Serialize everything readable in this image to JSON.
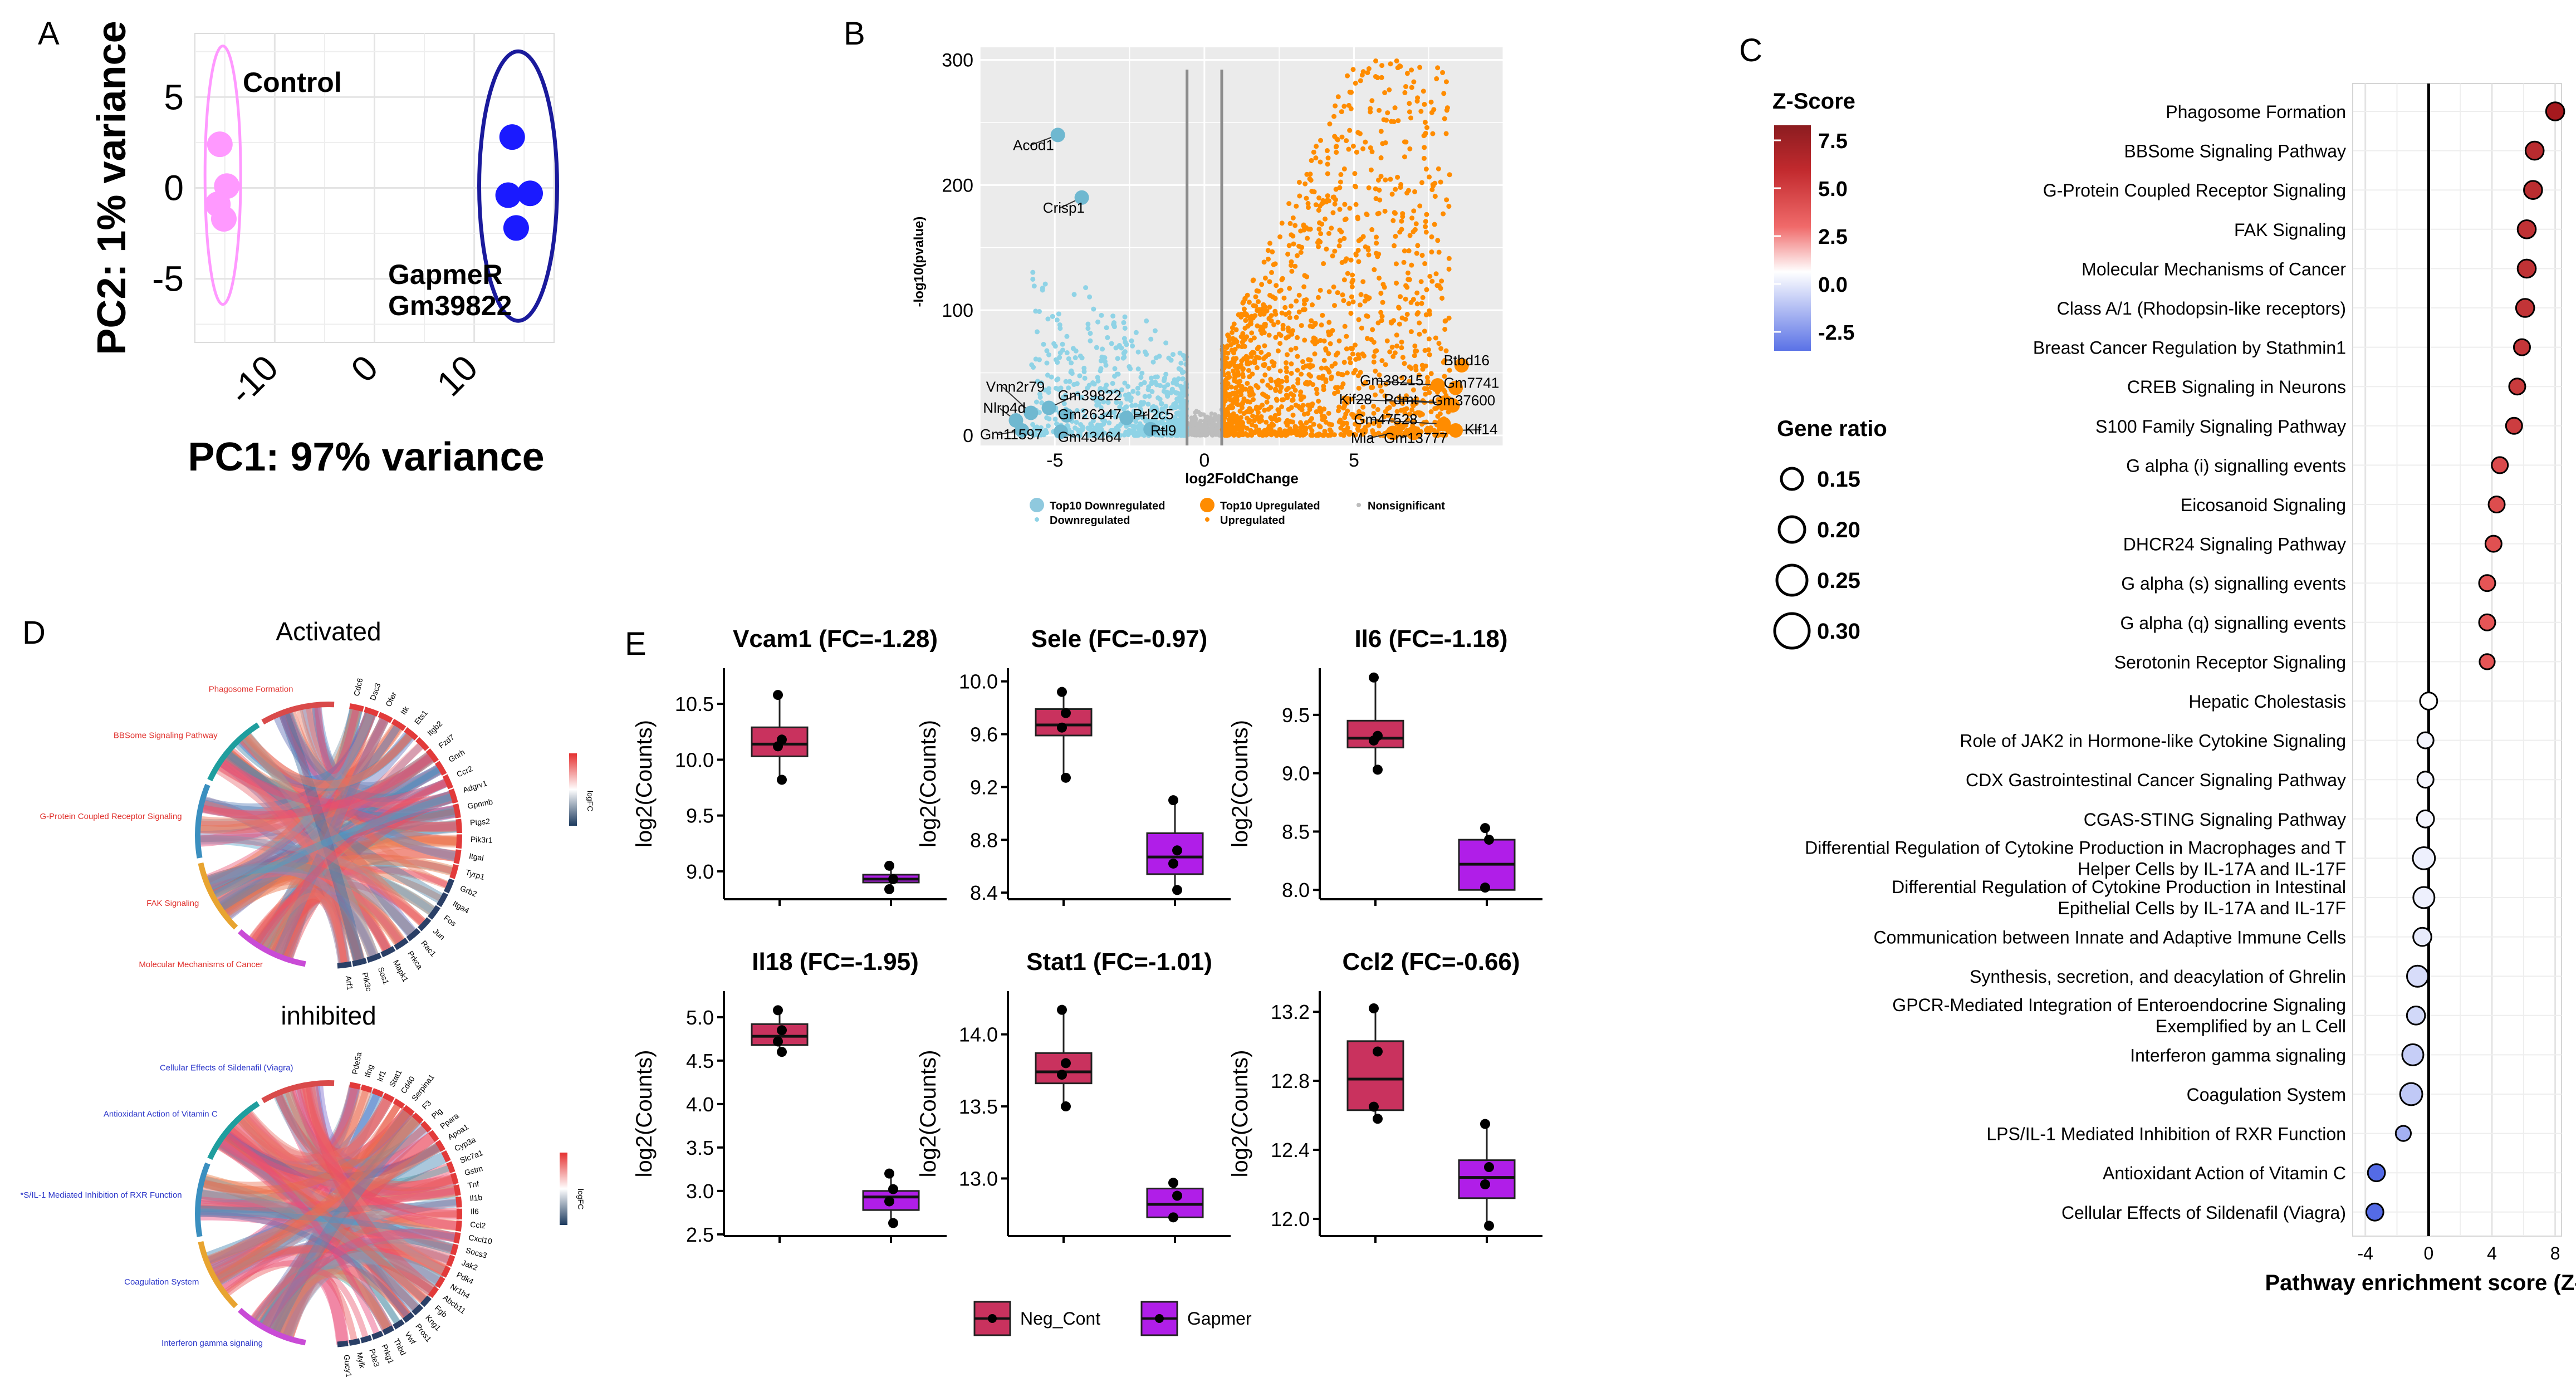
{
  "panels": {
    "a": "A",
    "b": "B",
    "c": "C",
    "d": "D",
    "e": "E"
  },
  "chart_data": [
    {
      "id": "A",
      "type": "scatter",
      "title": "",
      "xlabel": "PC1: 97% variance",
      "ylabel": "PC2: 1% variance",
      "xlim": [
        -18,
        18
      ],
      "ylim": [
        -8.5,
        8.5
      ],
      "xticks": [
        -10,
        0,
        10
      ],
      "yticks": [
        5,
        0,
        -5
      ],
      "xtick_labels": [
        "-10",
        "0",
        "10"
      ],
      "ytick_labels": [
        "5",
        "0",
        "-5"
      ],
      "groups": [
        {
          "name": "Control",
          "color": "#ff99ff",
          "label": "Control",
          "points": [
            [
              -15.5,
              2.4
            ],
            [
              -14.8,
              0.1
            ],
            [
              -15.7,
              -0.9
            ],
            [
              -15.1,
              -1.7
            ]
          ]
        },
        {
          "name": "GapmeR Gm39822",
          "color": "#1a1aff",
          "label_line1": "GapmeR",
          "label_line2": "Gm39822",
          "points": [
            [
              13.8,
              2.8
            ],
            [
              13.4,
              -0.4
            ],
            [
              15.6,
              -0.3
            ],
            [
              14.2,
              -2.2
            ]
          ]
        }
      ]
    },
    {
      "id": "B",
      "type": "scatter",
      "title": "",
      "xlabel": "log2FoldChange",
      "ylabel": "-log10(pvalue)",
      "xlim": [
        -7.5,
        10
      ],
      "ylim": [
        -8,
        310
      ],
      "xticks": [
        -5,
        0,
        5
      ],
      "yticks": [
        0,
        100,
        200,
        300
      ],
      "xtick_labels": [
        "-5",
        "0",
        "5"
      ],
      "ytick_labels": [
        "0",
        "100",
        "200",
        "300"
      ],
      "thresholds_x": [
        -0.58,
        0.58
      ],
      "downregulated_color": "#8fd3e6",
      "upregulated_color": "#ff8c00",
      "nonsig_color": "#bdbdbd",
      "top_labels": [
        {
          "text": "Acod1",
          "x": -4.9,
          "y": 240,
          "tx": -6.4,
          "ty": 228,
          "group": "down"
        },
        {
          "text": "Crisp1",
          "x": -4.1,
          "y": 190,
          "tx": -5.4,
          "ty": 178,
          "group": "down"
        },
        {
          "text": "Vmn2r79",
          "x": -5.8,
          "y": 18,
          "tx": -7.3,
          "ty": 35,
          "group": "down"
        },
        {
          "text": "Nlrp4d",
          "x": -6.3,
          "y": 12,
          "tx": -7.4,
          "ty": 18,
          "group": "down"
        },
        {
          "text": "Gm39822",
          "x": -5.2,
          "y": 22,
          "tx": -4.9,
          "ty": 28,
          "group": "down"
        },
        {
          "text": "Gm26347",
          "x": -4.6,
          "y": 16,
          "tx": -4.9,
          "ty": 13,
          "group": "down"
        },
        {
          "text": "Prl2c5",
          "x": -2.6,
          "y": 14,
          "tx": -2.4,
          "ty": 13,
          "group": "down"
        },
        {
          "text": "Gm11597",
          "x": -6.1,
          "y": 4,
          "tx": -7.5,
          "ty": -3,
          "group": "down"
        },
        {
          "text": "Gm43464",
          "x": -4.8,
          "y": 3,
          "tx": -4.9,
          "ty": -5,
          "group": "down"
        },
        {
          "text": "Rtl9",
          "x": -1.8,
          "y": 5,
          "tx": -1.8,
          "ty": 0,
          "group": "down"
        },
        {
          "text": "Btbd16",
          "x": 8.6,
          "y": 56,
          "tx": 8.0,
          "ty": 56,
          "group": "up"
        },
        {
          "text": "Gm38215",
          "x": 7.8,
          "y": 40,
          "tx": 5.2,
          "ty": 40,
          "group": "up"
        },
        {
          "text": "Gm7741",
          "x": 8.4,
          "y": 38,
          "tx": 8.0,
          "ty": 38,
          "group": "up"
        },
        {
          "text": "Kif28",
          "x": 8.1,
          "y": 26,
          "tx": 4.5,
          "ty": 25,
          "group": "up"
        },
        {
          "text": "Pdmt",
          "x": 8.0,
          "y": 26,
          "tx": 6.0,
          "ty": 25,
          "group": "up"
        },
        {
          "text": "Gm37600",
          "x": 8.3,
          "y": 24,
          "tx": 7.6,
          "ty": 24,
          "group": "up"
        },
        {
          "text": "Gm47528",
          "x": 8.0,
          "y": 9,
          "tx": 5.0,
          "ty": 9,
          "group": "up"
        },
        {
          "text": "Klf14",
          "x": 8.4,
          "y": 4,
          "tx": 8.7,
          "ty": 1,
          "group": "up"
        },
        {
          "text": "Mia",
          "x": 6.3,
          "y": 2,
          "tx": 4.9,
          "ty": -6,
          "group": "up"
        },
        {
          "text": "Gm13777",
          "x": 7.0,
          "y": 2,
          "tx": 6.0,
          "ty": -6,
          "group": "up"
        }
      ],
      "legend": {
        "top10_down": "Top10 Downregulated",
        "top10_up": "Top10 Upregulated",
        "nonsig": "Nonsignificant",
        "down": "Downregulated",
        "up": "Upregulated"
      }
    },
    {
      "id": "C",
      "type": "scatter",
      "title": "",
      "xlabel": "Pathway enrichment score (Z-score)",
      "ylabel": "",
      "xlim": [
        -4.8,
        8.4
      ],
      "xticks": [
        -4,
        0,
        4,
        8
      ],
      "xtick_labels": [
        "-4",
        "0",
        "4",
        "8"
      ],
      "legend_zscore_title": "Z-Score",
      "legend_zscore_ticks": [
        "7.5",
        "5.0",
        "2.5",
        "0.0",
        "-2.5"
      ],
      "legend_ratio_title": "Gene ratio",
      "legend_ratio_values": [
        "0.15",
        "0.20",
        "0.25",
        "0.30"
      ],
      "pathways": [
        {
          "name": "Phagosome Formation",
          "z": 8.0,
          "ratio": 0.22
        },
        {
          "name": "BBSome Signaling Pathway",
          "z": 6.7,
          "ratio": 0.22
        },
        {
          "name": "G-Protein Coupled Receptor Signaling",
          "z": 6.6,
          "ratio": 0.22
        },
        {
          "name": "FAK Signaling",
          "z": 6.2,
          "ratio": 0.22
        },
        {
          "name": "Molecular Mechanisms of Cancer",
          "z": 6.2,
          "ratio": 0.22
        },
        {
          "name": "Class A/1 (Rhodopsin-like receptors)",
          "z": 6.1,
          "ratio": 0.22
        },
        {
          "name": "Breast Cancer Regulation by Stathmin1",
          "z": 5.9,
          "ratio": 0.2
        },
        {
          "name": "CREB Signaling in Neurons",
          "z": 5.6,
          "ratio": 0.2
        },
        {
          "name": "S100 Family Signaling Pathway",
          "z": 5.4,
          "ratio": 0.2
        },
        {
          "name": "G alpha (i) signalling events",
          "z": 4.5,
          "ratio": 0.2
        },
        {
          "name": "Eicosanoid Signaling",
          "z": 4.3,
          "ratio": 0.2
        },
        {
          "name": "DHCR24 Signaling Pathway",
          "z": 4.1,
          "ratio": 0.2
        },
        {
          "name": "G alpha (s) signalling events",
          "z": 3.7,
          "ratio": 0.2
        },
        {
          "name": "G alpha (q) signalling events",
          "z": 3.7,
          "ratio": 0.2
        },
        {
          "name": "Serotonin Receptor Signaling",
          "z": 3.7,
          "ratio": 0.19
        },
        {
          "name": "Hepatic Cholestasis",
          "z": 0.0,
          "ratio": 0.21
        },
        {
          "name": "Role of JAK2 in Hormone-like Cytokine Signaling",
          "z": -0.2,
          "ratio": 0.2
        },
        {
          "name": "CDX Gastrointestinal Cancer Signaling Pathway",
          "z": -0.2,
          "ratio": 0.2
        },
        {
          "name": "CGAS-STING Signaling Pathway",
          "z": -0.2,
          "ratio": 0.21
        },
        {
          "name": "Differential Regulation of Cytokine Production in Macrophages and T Helper Cells by IL-17A and IL-17F",
          "z": -0.3,
          "ratio": 0.26
        },
        {
          "name": "Differential Regulation of Cytokine Production in Intestinal Epithelial Cells by IL-17A and IL-17F",
          "z": -0.3,
          "ratio": 0.25
        },
        {
          "name": "Communication between Innate and Adaptive Immune Cells",
          "z": -0.4,
          "ratio": 0.22
        },
        {
          "name": "Synthesis, secretion, and deacylation of Ghrelin",
          "z": -0.7,
          "ratio": 0.25
        },
        {
          "name": "GPCR-Mediated Integration of Enteroendocrine Signaling Exemplified by an L Cell",
          "z": -0.8,
          "ratio": 0.22
        },
        {
          "name": "Interferon gamma signaling",
          "z": -1.0,
          "ratio": 0.25
        },
        {
          "name": "Coagulation System",
          "z": -1.1,
          "ratio": 0.26
        },
        {
          "name": "LPS/IL-1 Mediated Inhibition of RXR Function",
          "z": -1.6,
          "ratio": 0.19
        },
        {
          "name": "Antioxidant Action of Vitamin C",
          "z": -3.3,
          "ratio": 0.21
        },
        {
          "name": "Cellular Effects of Sildenafil (Viagra)",
          "z": -3.4,
          "ratio": 0.21
        }
      ]
    },
    {
      "id": "D",
      "type": "other",
      "title_activated": "Activated",
      "title_inhibited": "inhibited",
      "activated_pathways": [
        "Molecular Mechanisms of Cancer",
        "FAK Signaling",
        "G-Protein Coupled Receptor Signaling",
        "BBSome Signaling Pathway",
        "Phagosome Formation"
      ],
      "inhibited_pathways": [
        "Interferon gamma signaling",
        "Coagulation System",
        "*S/IL-1 Mediated Inhibition of RXR Function",
        "Antioxidant Action of Vitamin C",
        "Cellular Effects of Sildenafil (Viagra)"
      ],
      "activated_genes": [
        "Cdc6",
        "Dsc3",
        "Ofer",
        "Itk",
        "Ets1",
        "Itgb2",
        "Fzd7",
        "Gnrh",
        "Ccr2",
        "Adgrv1",
        "Gpnmb",
        "Ptgs2",
        "Pik3r1",
        "Itgal",
        "Tyrp1",
        "Grb2",
        "Itga4",
        "Fos",
        "Jun",
        "Rac1",
        "Prkca",
        "Mapk1",
        "Sos1",
        "Pik3c",
        "Arf1"
      ],
      "inhibited_genes": [
        "Pde5a",
        "Ifng",
        "Irf1",
        "Stat1",
        "Cd40",
        "Serpina1",
        "F3",
        "Plg",
        "Ppara",
        "Apoa1",
        "Cyp3a",
        "Slc7a1",
        "Gstm",
        "Tnf",
        "Il1b",
        "Il6",
        "Ccl2",
        "Cxcl10",
        "Socs3",
        "Jak2",
        "Pdk4",
        "Nr1h4",
        "Abcb11",
        "Fgb",
        "Kng1",
        "Pros1",
        "Vwf",
        "Thbd",
        "Prkg1",
        "Pde3",
        "Mylk",
        "Gucy1"
      ],
      "colorbar_label": "logFC"
    },
    {
      "id": "E",
      "type": "box",
      "ylabel": "log2(Counts)",
      "legend": [
        "Neg_Cont",
        "Gapmer"
      ],
      "colors": [
        "#c9325e",
        "#b01ee8"
      ],
      "genes": [
        {
          "title": "Vcam1 (FC=-1.28)",
          "ylim": [
            8.75,
            10.82
          ],
          "yticks": [
            9.0,
            9.5,
            10.0,
            10.5
          ],
          "ytick_labels": [
            "9.0",
            "9.5",
            "10.0",
            "10.5"
          ],
          "neg": {
            "q1": 10.03,
            "med": 10.14,
            "q3": 10.29,
            "lo": 9.82,
            "hi": 10.58,
            "pts": [
              10.58,
              10.18,
              10.12,
              9.82
            ]
          },
          "gap": {
            "q1": 8.9,
            "med": 8.93,
            "q3": 8.97,
            "lo": 8.84,
            "hi": 9.05,
            "pts": [
              9.05,
              8.93,
              8.84
            ]
          }
        },
        {
          "title": "Sele (FC=-0.97)",
          "ylim": [
            8.35,
            10.1
          ],
          "yticks": [
            8.4,
            8.8,
            9.2,
            9.6,
            10.0
          ],
          "ytick_labels": [
            "8.4",
            "8.8",
            "9.2",
            "9.6",
            "10.0"
          ],
          "neg": {
            "q1": 9.59,
            "med": 9.67,
            "q3": 9.79,
            "lo": 9.27,
            "hi": 9.92,
            "pts": [
              9.92,
              9.76,
              9.65,
              9.27
            ]
          },
          "gap": {
            "q1": 8.54,
            "med": 8.67,
            "q3": 8.85,
            "lo": 8.42,
            "hi": 9.1,
            "pts": [
              9.1,
              8.72,
              8.62,
              8.42
            ]
          }
        },
        {
          "title": "Il6 (FC=-1.18)",
          "ylim": [
            7.92,
            9.9
          ],
          "yticks": [
            8.0,
            8.5,
            9.0,
            9.5
          ],
          "ytick_labels": [
            "8.0",
            "8.5",
            "9.0",
            "9.5"
          ],
          "neg": {
            "q1": 9.22,
            "med": 9.3,
            "q3": 9.45,
            "lo": 9.03,
            "hi": 9.82,
            "pts": [
              9.82,
              9.32,
              9.28,
              9.03
            ]
          },
          "gap": {
            "q1": 8.0,
            "med": 8.22,
            "q3": 8.43,
            "lo": 8.0,
            "hi": 8.53,
            "pts": [
              8.53,
              8.43,
              8.02
            ]
          }
        },
        {
          "title": "Il18 (FC=-1.95)",
          "ylim": [
            2.48,
            5.3
          ],
          "yticks": [
            2.5,
            3.0,
            3.5,
            4.0,
            4.5,
            5.0
          ],
          "ytick_labels": [
            "2.5",
            "3.0",
            "3.5",
            "4.0",
            "4.5",
            "5.0"
          ],
          "neg": {
            "q1": 4.68,
            "med": 4.78,
            "q3": 4.92,
            "lo": 4.6,
            "hi": 5.08,
            "pts": [
              5.08,
              4.85,
              4.72,
              4.6
            ]
          },
          "gap": {
            "q1": 2.78,
            "med": 2.93,
            "q3": 3.0,
            "lo": 2.63,
            "hi": 3.2,
            "pts": [
              3.2,
              3.02,
              2.88,
              2.63
            ]
          }
        },
        {
          "title": "Stat1 (FC=-1.01)",
          "ylim": [
            12.6,
            14.3
          ],
          "yticks": [
            13.0,
            13.5,
            14.0
          ],
          "ytick_labels": [
            "13.0",
            "13.5",
            "14.0"
          ],
          "neg": {
            "q1": 13.66,
            "med": 13.74,
            "q3": 13.87,
            "lo": 13.5,
            "hi": 14.17,
            "pts": [
              14.17,
              13.8,
              13.72,
              13.5
            ]
          },
          "gap": {
            "q1": 12.73,
            "med": 12.82,
            "q3": 12.93,
            "lo": 12.73,
            "hi": 12.97,
            "pts": [
              12.97,
              12.88,
              12.73
            ]
          }
        },
        {
          "title": "Ccl2 (FC=-0.66)",
          "ylim": [
            11.9,
            13.32
          ],
          "yticks": [
            12.0,
            12.4,
            12.8,
            13.2
          ],
          "ytick_labels": [
            "12.0",
            "12.4",
            "12.8",
            "13.2"
          ],
          "neg": {
            "q1": 12.63,
            "med": 12.81,
            "q3": 13.03,
            "lo": 12.58,
            "hi": 13.22,
            "pts": [
              13.22,
              12.97,
              12.65,
              12.58
            ]
          },
          "gap": {
            "q1": 12.12,
            "med": 12.24,
            "q3": 12.34,
            "lo": 11.96,
            "hi": 12.55,
            "pts": [
              12.55,
              12.3,
              12.2,
              11.96
            ]
          }
        }
      ]
    }
  ]
}
